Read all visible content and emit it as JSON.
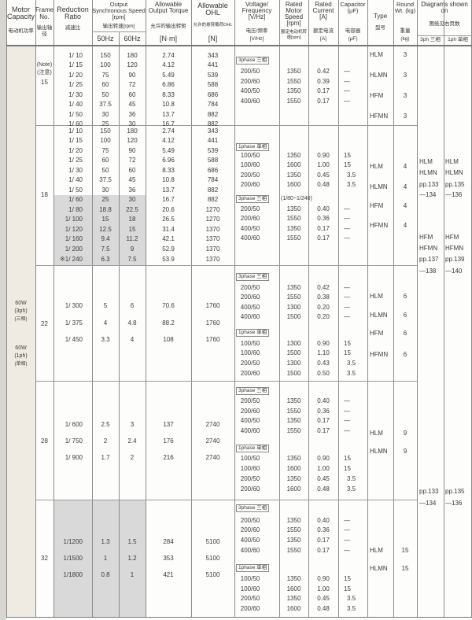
{
  "header": {
    "motor_capacity": "Motor Capacity",
    "motor_capacity_cn": "电动机功率",
    "frame_no": "Frame No.",
    "frame_no_cn": "输出轴径",
    "reduction_ratio": "Reduction Ratio",
    "reduction_ratio_cn": "减速比",
    "output_speed": "Output Synchronous Speed [rpm]",
    "output_speed_cn": "输出转速[rpm]",
    "hz50": "50Hz",
    "hz60": "60Hz",
    "torque": "Allowable Output Torque",
    "torque_cn": "允许的输出转矩",
    "torque_unit": "[N·m]",
    "ohl": "Allowable OHL",
    "ohl_cn": "允许的悬臂载荷OHL",
    "ohl_unit": "[N]",
    "voltage": "Voltage/ Frequency [V/Hz]",
    "voltage_cn": "电压/频率",
    "voltage_unit": "[V/Hz]",
    "motor_speed": "Rated Motor Speed [rpm]",
    "motor_speed_cn": "额定电动机转速[rpm]",
    "current": "Rated Current [A]",
    "current_cn": "额定电流",
    "current_unit": "[A]",
    "capacitor": "Capacitor (μF)",
    "capacitor_cn": "电容器",
    "capacitor_unit": "(μF)",
    "type": "Type",
    "type_cn": "型号",
    "weight": "Round Wt. (kg)",
    "weight_cn": "重量",
    "weight_unit": "(kg)",
    "diagrams": "Diagrams shown on",
    "diagrams_cn": "图纸见右页数",
    "ph3": "3ph 三相",
    "ph1": "1ph 单相"
  },
  "motor_capacity": {
    "line1": [
      "60W",
      "(3ph)",
      "(三相)"
    ],
    "line2": [
      "60W",
      "(1ph)",
      "(单相)"
    ]
  },
  "sections": [
    {
      "frame": "15",
      "frame_note": [
        "(Note)",
        "(注意)"
      ],
      "ratios": [
        {
          "ratio": "1/ 10",
          "hz50": "150",
          "hz60": "180",
          "torque": "2.74",
          "ohl": "343"
        },
        {
          "ratio": "1/ 15",
          "hz50": "100",
          "hz60": "120",
          "torque": "4.12",
          "ohl": "441"
        },
        {
          "ratio": "1/ 20",
          "hz50": "75",
          "hz60": "90",
          "torque": "5.49",
          "ohl": "539"
        },
        {
          "ratio": "1/ 25",
          "hz50": "60",
          "hz60": "72",
          "torque": "6.86",
          "ohl": "588"
        },
        {
          "ratio": "1/ 30",
          "hz50": "50",
          "hz60": "60",
          "torque": "8.33",
          "ohl": "686"
        },
        {
          "ratio": "1/ 40",
          "hz50": "37.5",
          "hz60": "45",
          "torque": "10.8",
          "ohl": "784"
        },
        {
          "ratio": "1/ 50",
          "hz50": "30",
          "hz60": "36",
          "torque": "13.7",
          "ohl": "882"
        },
        {
          "ratio": "1/ 60",
          "hz50": "25",
          "hz60": "30",
          "torque": "16.7",
          "ohl": "882"
        }
      ],
      "electrical": [
        {
          "label": "3phase 三相",
          "note": "",
          "rows": [
            [
              "200/50",
              "1350",
              "0.42",
              "—"
            ],
            [
              "200/60",
              "1550",
              "0.39",
              "—"
            ],
            [
              "400/50",
              "1350",
              "0.17",
              "—"
            ],
            [
              "400/60",
              "1550",
              "0.17",
              "—"
            ]
          ]
        }
      ],
      "types": [
        {
          "type": "HLM",
          "weight": "3"
        },
        {
          "type": "HLMN",
          "weight": "3"
        },
        {
          "type": "HFM",
          "weight": "3"
        },
        {
          "type": "HFMN",
          "weight": "3"
        }
      ]
    },
    {
      "frame": "18",
      "frame_note": [],
      "ratios": [
        {
          "ratio": "1/ 10",
          "hz50": "150",
          "hz60": "180",
          "torque": "2.74",
          "ohl": "343"
        },
        {
          "ratio": "1/ 15",
          "hz50": "100",
          "hz60": "120",
          "torque": "4.12",
          "ohl": "441"
        },
        {
          "ratio": "1/ 20",
          "hz50": "75",
          "hz60": "90",
          "torque": "5.49",
          "ohl": "539"
        },
        {
          "ratio": "1/ 25",
          "hz50": "60",
          "hz60": "72",
          "torque": "6.96",
          "ohl": "588"
        },
        {
          "ratio": "1/ 30",
          "hz50": "50",
          "hz60": "60",
          "torque": "8.33",
          "ohl": "686"
        },
        {
          "ratio": "1/ 40",
          "hz50": "37.5",
          "hz60": "45",
          "torque": "10.8",
          "ohl": "784"
        },
        {
          "ratio": "1/ 50",
          "hz50": "30",
          "hz60": "36",
          "torque": "13.7",
          "ohl": "882"
        },
        {
          "ratio": "1/ 60",
          "hz50": "25",
          "hz60": "30",
          "torque": "16.7",
          "ohl": "882"
        },
        {
          "ratio": "1/ 80",
          "hz50": "18.8",
          "hz60": "22.5",
          "torque": "20.6",
          "ohl": "1270",
          "shaded": true
        },
        {
          "ratio": "1/ 100",
          "hz50": "15",
          "hz60": "18",
          "torque": "26.5",
          "ohl": "1270",
          "shaded": true
        },
        {
          "ratio": "1/ 120",
          "hz50": "12.5",
          "hz60": "15",
          "torque": "31.4",
          "ohl": "1370",
          "shaded": true
        },
        {
          "ratio": "1/ 160",
          "hz50": "9.4",
          "hz60": "11.2",
          "torque": "42.1",
          "ohl": "1370",
          "shaded": true
        },
        {
          "ratio": "1/ 200",
          "hz50": "7.5",
          "hz60": "9",
          "torque": "52.9",
          "ohl": "1370",
          "shaded": true
        },
        {
          "ratio": "※1/ 240",
          "hz50": "6.3",
          "hz60": "7.5",
          "torque": "53.9",
          "ohl": "1370",
          "shaded": true
        }
      ],
      "electrical": [
        {
          "label": "1phase 单相",
          "note": "",
          "rows": [
            [
              "100/50",
              "1350",
              "0.90",
              "15"
            ],
            [
              "100/60",
              "1600",
              "1.00",
              "15"
            ],
            [
              "200/50",
              "1350",
              "0.45",
              "3.5"
            ],
            [
              "200/60",
              "1600",
              "0.48",
              "3.5"
            ]
          ]
        },
        {
          "label": "3phase 三相",
          "note": "(1/80~1/240)",
          "rows": [
            [
              "200/50",
              "1350",
              "0.40",
              "—"
            ],
            [
              "200/60",
              "1550",
              "0.36",
              "—"
            ],
            [
              "400/50",
              "1350",
              "0.17",
              "—"
            ],
            [
              "400/60",
              "1550",
              "0.17",
              "—"
            ]
          ]
        }
      ],
      "types": [
        {
          "type": "HLM",
          "weight": "4"
        },
        {
          "type": "HLMN",
          "weight": "4"
        },
        {
          "type": "HFM",
          "weight": "4"
        },
        {
          "type": "HFMN",
          "weight": "4"
        }
      ]
    },
    {
      "frame": "22",
      "frame_note": [],
      "ratios": [
        {
          "ratio": "1/ 300",
          "hz50": "5",
          "hz60": "6",
          "torque": "70.6",
          "ohl": "1760"
        },
        {
          "ratio": "1/ 375",
          "hz50": "4",
          "hz60": "4.8",
          "torque": "88.2",
          "ohl": "1760"
        },
        {
          "ratio": "1/ 450",
          "hz50": "3.3",
          "hz60": "4",
          "torque": "108",
          "ohl": "1760"
        }
      ],
      "electrical": [
        {
          "label": "3phase 三相",
          "note": "",
          "rows": [
            [
              "200/50",
              "1350",
              "0.42",
              "—"
            ],
            [
              "200/60",
              "1550",
              "0.38",
              "—"
            ],
            [
              "400/50",
              "1300",
              "0.20",
              "—"
            ],
            [
              "400/60",
              "1500",
              "0.20",
              "—"
            ]
          ]
        },
        {
          "label": "1phase 单相",
          "note": "",
          "rows": [
            [
              "100/50",
              "1300",
              "0.90",
              "15"
            ],
            [
              "100/60",
              "1500",
              "1.10",
              "15"
            ],
            [
              "200/50",
              "1300",
              "0.43",
              "3.5"
            ],
            [
              "200/60",
              "1500",
              "0.50",
              "3.5"
            ]
          ]
        }
      ],
      "types": [
        {
          "type": "HLM",
          "weight": "6"
        },
        {
          "type": "HLMN",
          "weight": "6"
        },
        {
          "type": "HFM",
          "weight": "6"
        },
        {
          "type": "HFMN",
          "weight": "6"
        }
      ]
    },
    {
      "frame": "28",
      "frame_note": [],
      "ratios": [
        {
          "ratio": "1/ 600",
          "hz50": "2.5",
          "hz60": "3",
          "torque": "137",
          "ohl": "2740"
        },
        {
          "ratio": "1/ 750",
          "hz50": "2",
          "hz60": "2.4",
          "torque": "176",
          "ohl": "2740"
        },
        {
          "ratio": "1/ 900",
          "hz50": "1.7",
          "hz60": "2",
          "torque": "216",
          "ohl": "2740"
        }
      ],
      "electrical": [
        {
          "label": "3phase 三相",
          "note": "",
          "rows": [
            [
              "200/50",
              "1350",
              "0.40",
              "—"
            ],
            [
              "200/60",
              "1550",
              "0.36",
              "—"
            ],
            [
              "400/50",
              "1350",
              "0.17",
              "—"
            ],
            [
              "400/60",
              "1550",
              "0.17",
              "—"
            ]
          ]
        },
        {
          "label": "1phase 单相",
          "note": "",
          "rows": [
            [
              "100/50",
              "1350",
              "0.90",
              "15"
            ],
            [
              "100/60",
              "1600",
              "1.00",
              "15"
            ],
            [
              "200/50",
              "1350",
              "0.45",
              "3.5"
            ],
            [
              "200/60",
              "1600",
              "0.48",
              "3.5"
            ]
          ]
        }
      ],
      "types": [
        {
          "type": "HLM",
          "weight": "9"
        },
        {
          "type": "HLMN",
          "weight": "9"
        }
      ]
    },
    {
      "frame": "32",
      "frame_note": [],
      "ratios": [
        {
          "ratio": "1/1200",
          "hz50": "1.3",
          "hz60": "1.5",
          "torque": "284",
          "ohl": "5100",
          "shaded": true
        },
        {
          "ratio": "1/1500",
          "hz50": "1",
          "hz60": "1.2",
          "torque": "353",
          "ohl": "5100",
          "shaded": true
        },
        {
          "ratio": "1/1800",
          "hz50": "0.8",
          "hz60": "1",
          "torque": "421",
          "ohl": "5100",
          "shaded": true
        }
      ],
      "electrical": [
        {
          "label": "3phase 三相",
          "note": "",
          "rows": [
            [
              "200/50",
              "1350",
              "0.40",
              "—"
            ],
            [
              "200/60",
              "1550",
              "0.36",
              "—"
            ],
            [
              "400/50",
              "1350",
              "0.17",
              "—"
            ],
            [
              "400/60",
              "1550",
              "0.17",
              "—"
            ]
          ]
        },
        {
          "label": "1phase 单相",
          "note": "",
          "rows": [
            [
              "100/50",
              "1350",
              "0.90",
              "15"
            ],
            [
              "100/60",
              "1600",
              "1.00",
              "15"
            ],
            [
              "200/50",
              "1350",
              "0.45",
              "3.5"
            ],
            [
              "200/60",
              "1600",
              "0.48",
              "3.5"
            ]
          ]
        }
      ],
      "types": [
        {
          "type": "HLM",
          "weight": "15"
        },
        {
          "type": "HLMN",
          "weight": "15"
        }
      ]
    }
  ],
  "diagrams": [
    {
      "ph3": [
        "HLM",
        "HLMN",
        "pp.133",
        "—134"
      ],
      "ph1": [
        "HLM",
        "HLMN",
        "pp.135",
        "—136"
      ]
    },
    {
      "ph3": [
        "HFM",
        "HFMN",
        "pp.137",
        "—138"
      ],
      "ph1": [
        "HFM",
        "HFMN",
        "pp.139",
        "—140"
      ]
    },
    {
      "ph3": [
        "pp.133",
        "—134"
      ],
      "ph1": [
        "pp.135",
        "—136"
      ]
    }
  ]
}
